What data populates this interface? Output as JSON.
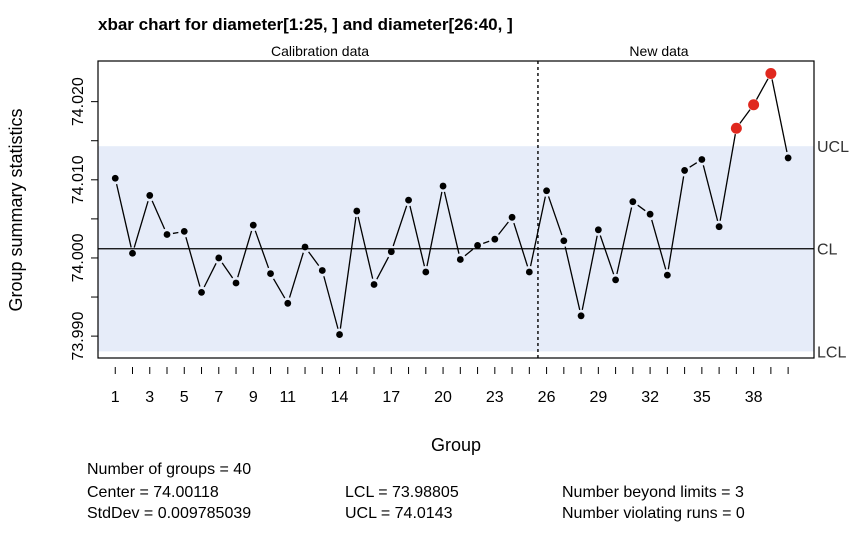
{
  "chart_data": {
    "type": "line",
    "title": "xbar chart for diameter[1:25, ] and diameter[26:40, ]",
    "xlabel": "Group",
    "ylabel": "Group summary statistics",
    "sections": [
      "Calibration data",
      "New data"
    ],
    "split_after_group": 25,
    "x": [
      1,
      2,
      3,
      4,
      5,
      6,
      7,
      8,
      9,
      10,
      11,
      12,
      13,
      14,
      15,
      16,
      17,
      18,
      19,
      20,
      21,
      22,
      23,
      24,
      25,
      26,
      27,
      28,
      29,
      30,
      31,
      32,
      33,
      34,
      35,
      36,
      37,
      38,
      39,
      40
    ],
    "values": [
      74.0102,
      74.0006,
      74.008,
      74.003,
      74.0034,
      73.9956,
      74.0,
      73.9968,
      74.0042,
      73.998,
      73.9942,
      74.0014,
      73.9984,
      73.9902,
      74.006,
      73.9966,
      74.0008,
      74.0074,
      73.9982,
      74.0092,
      73.9998,
      74.0016,
      74.0024,
      74.0052,
      73.9982,
      74.0086,
      74.0022,
      73.9926,
      74.0036,
      73.9972,
      74.0072,
      74.0056,
      73.9978,
      74.0112,
      74.0126,
      74.004,
      74.0166,
      74.0196,
      74.0236,
      74.0128
    ],
    "beyond_limits": [
      37,
      38,
      39
    ],
    "center": 74.00118,
    "ucl": 74.0143,
    "lcl": 73.98805,
    "ylim": [
      73.9872,
      74.0252
    ],
    "xlim": [
      0,
      41.5
    ],
    "y_ticks": [
      "73.990",
      "74.000",
      "74.010",
      "74.020"
    ],
    "y_tick_values": [
      73.99,
      73.995,
      74.0,
      74.005,
      74.01,
      74.015,
      74.02
    ],
    "x_tick_labels": [
      1,
      3,
      5,
      7,
      9,
      11,
      14,
      17,
      20,
      23,
      26,
      29,
      32,
      35,
      38
    ],
    "x_tick_groups": [
      1,
      2,
      3,
      4,
      5,
      6,
      7,
      8,
      9,
      10,
      11,
      12,
      13,
      14,
      15,
      16,
      17,
      18,
      19,
      20,
      21,
      22,
      23,
      24,
      25,
      26,
      27,
      28,
      29,
      30,
      31,
      32,
      33,
      34,
      35,
      36,
      37,
      38,
      39,
      40
    ],
    "limit_labels": {
      "ucl": "UCL",
      "cl": "CL",
      "lcl": "LCL"
    },
    "colors": {
      "band": "#e6ecf9",
      "point": "#000000",
      "violation": "#e0281e",
      "line": "#000000"
    }
  },
  "summary": {
    "groups": "Number of groups = 40",
    "center": "Center = 74.00118",
    "stddev": "StdDev = 0.009785039",
    "lcl": "LCL = 73.98805",
    "ucl": "UCL = 74.0143",
    "beyond": "Number beyond limits = 3",
    "violating": "Number violating runs = 0"
  }
}
